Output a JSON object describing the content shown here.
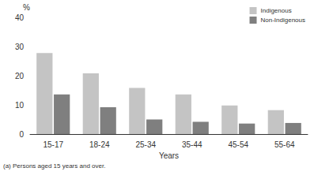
{
  "chart_data": {
    "type": "bar",
    "categories": [
      "15-17",
      "18-24",
      "25-34",
      "35-44",
      "45-54",
      "55-64"
    ],
    "series": [
      {
        "name": "Indigenous",
        "color": "#c4c4c4",
        "values": [
          27.8,
          20.8,
          15.8,
          13.6,
          9.8,
          8.2
        ]
      },
      {
        "name": "Non-Indigenous",
        "color": "#7f7f7f",
        "values": [
          13.6,
          9.2,
          5.0,
          4.2,
          3.6,
          3.8
        ]
      }
    ],
    "ylabel": "%",
    "xlabel": "Years",
    "ylim": [
      0,
      40
    ],
    "yticks": [
      0,
      10,
      20,
      30,
      40
    ],
    "annotations": [
      "(a) Persons aged 15 years and over."
    ],
    "legend": "top-right",
    "grid": false
  }
}
